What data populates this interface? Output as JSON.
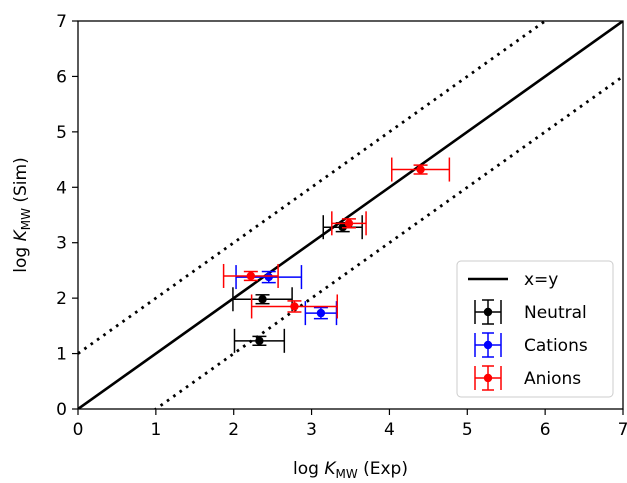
{
  "chart_data": {
    "type": "scatter",
    "xlabel": "log K_MW (Exp)",
    "ylabel": "log K_MW (Sim)",
    "xlim": [
      0,
      7
    ],
    "ylim": [
      0,
      7
    ],
    "xticks": [
      0,
      1,
      2,
      3,
      4,
      5,
      6,
      7
    ],
    "yticks": [
      0,
      1,
      2,
      3,
      4,
      5,
      6,
      7
    ],
    "grid": false,
    "legend_position": "bottom-right",
    "reference_lines": [
      {
        "name": "x=y",
        "style": "solid",
        "offset": 0,
        "color": "#000000"
      },
      {
        "style": "dotted",
        "offset": 1,
        "color": "#000000"
      },
      {
        "style": "dotted",
        "offset": -1,
        "color": "#000000"
      }
    ],
    "series": [
      {
        "name": "Neutral",
        "color": "#000000",
        "points": [
          {
            "x": 3.4,
            "y": 3.28,
            "xerr": 0.25,
            "yerr": 0.08
          },
          {
            "x": 2.37,
            "y": 1.98,
            "xerr": 0.38,
            "yerr": 0.08
          },
          {
            "x": 2.33,
            "y": 1.23,
            "xerr": 0.32,
            "yerr": 0.08
          }
        ]
      },
      {
        "name": "Cations",
        "color": "#0000ff",
        "points": [
          {
            "x": 2.45,
            "y": 2.38,
            "xerr": 0.42,
            "yerr": 0.1
          },
          {
            "x": 3.12,
            "y": 1.73,
            "xerr": 0.2,
            "yerr": 0.1
          }
        ]
      },
      {
        "name": "Anions",
        "color": "#ff0000",
        "points": [
          {
            "x": 4.4,
            "y": 4.32,
            "xerr": 0.37,
            "yerr": 0.08
          },
          {
            "x": 3.48,
            "y": 3.35,
            "xerr": 0.22,
            "yerr": 0.08
          },
          {
            "x": 2.22,
            "y": 2.4,
            "xerr": 0.35,
            "yerr": 0.08
          },
          {
            "x": 2.78,
            "y": 1.85,
            "xerr": 0.55,
            "yerr": 0.1
          }
        ]
      }
    ]
  }
}
